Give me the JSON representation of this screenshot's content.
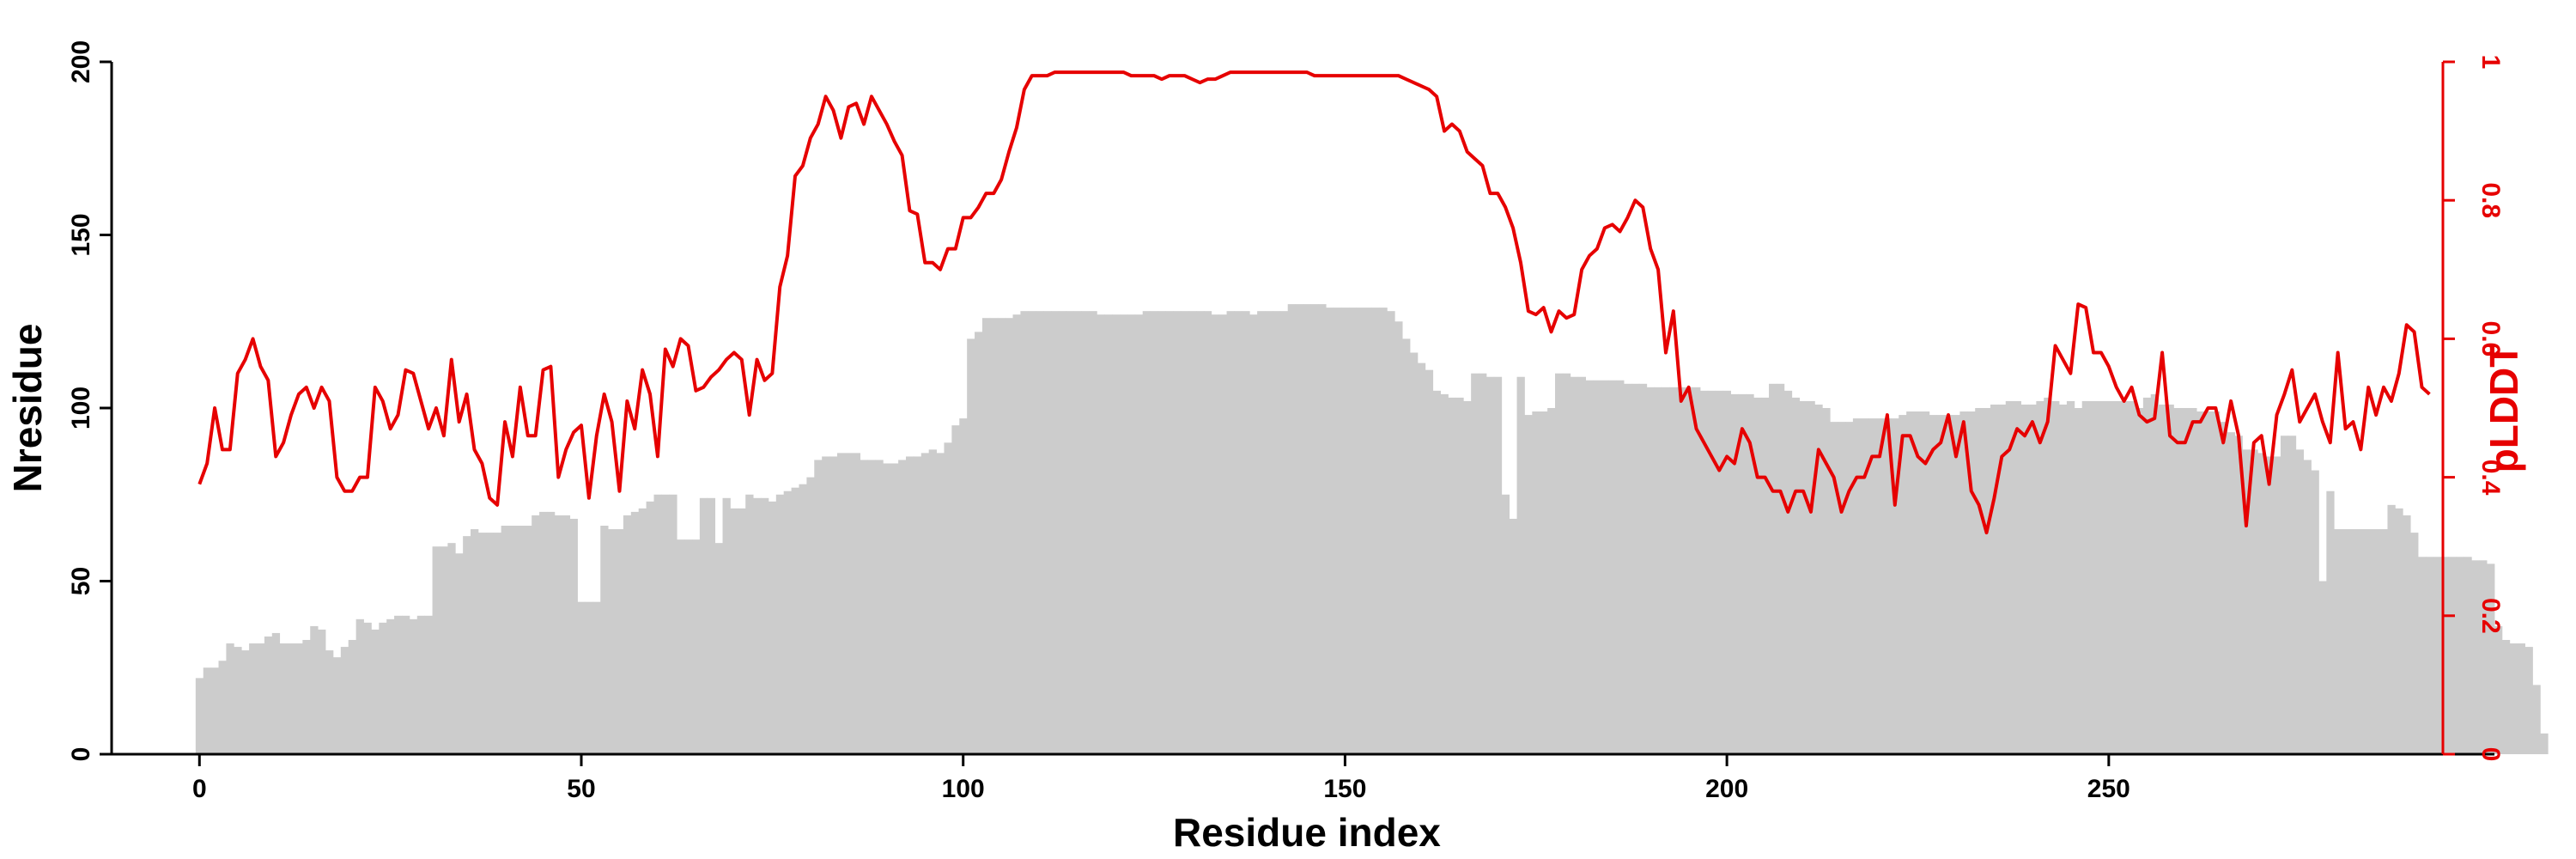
{
  "colors": {
    "bar": "#cccccc",
    "line": "#e60000",
    "axis": "#000000"
  },
  "chart_data": {
    "type": "bar+line",
    "xlabel": "Residue index",
    "ylabel_left": "Nresidue",
    "ylabel_right": "pLDDT",
    "xlim": [
      -11.5,
      300.5
    ],
    "ylim_left": [
      0,
      200
    ],
    "ylim_right": [
      0,
      1
    ],
    "x_ticks": [
      0,
      50,
      100,
      150,
      200,
      250
    ],
    "x_tick_labels": [
      "0",
      "50",
      "100",
      "150",
      "200",
      "250"
    ],
    "y_ticks_left": [
      0,
      50,
      100,
      150,
      200
    ],
    "y_tick_labels_left": [
      "0",
      "50",
      "100",
      "150",
      "200"
    ],
    "y_ticks_right": [
      0,
      0.2,
      0.4,
      0.6,
      0.8,
      1
    ],
    "y_tick_labels_right": [
      "0",
      "0.2",
      "0.4",
      "0.6",
      "0.8",
      "1"
    ],
    "grid": false,
    "legend": "none",
    "series": [
      {
        "kind": "bar",
        "axis": "left",
        "x_start": 0,
        "values": [
          22,
          25,
          25,
          27,
          32,
          31,
          30,
          32,
          32,
          34,
          35,
          32,
          32,
          32,
          33,
          37,
          36,
          30,
          28,
          31,
          33,
          39,
          38,
          36,
          38,
          39,
          40,
          40,
          39,
          40,
          40,
          60,
          60,
          61,
          58,
          63,
          65,
          64,
          64,
          64,
          66,
          66,
          66,
          66,
          69,
          70,
          70,
          69,
          69,
          68,
          44,
          44,
          44,
          66,
          65,
          65,
          69,
          70,
          71,
          73,
          75,
          75,
          75,
          62,
          62,
          62,
          74,
          74,
          61,
          74,
          71,
          71,
          75,
          74,
          74,
          73,
          75,
          76,
          77,
          78,
          80,
          85,
          86,
          86,
          87,
          87,
          87,
          85,
          85,
          85,
          84,
          84,
          85,
          86,
          86,
          87,
          88,
          87,
          90,
          95,
          97,
          120,
          122,
          126,
          126,
          126,
          126,
          127,
          128,
          128,
          128,
          128,
          128,
          128,
          128,
          128,
          128,
          128,
          127,
          127,
          127,
          127,
          127,
          127,
          128,
          128,
          128,
          128,
          128,
          128,
          128,
          128,
          128,
          127,
          127,
          128,
          128,
          128,
          127,
          128,
          128,
          128,
          128,
          130,
          130,
          130,
          130,
          130,
          129,
          129,
          129,
          129,
          129,
          129,
          129,
          129,
          128,
          125,
          120,
          116,
          113,
          111,
          105,
          104,
          103,
          103,
          102,
          110,
          110,
          109,
          109,
          75,
          68,
          109,
          98,
          99,
          99,
          100,
          110,
          110,
          109,
          109,
          108,
          108,
          108,
          108,
          108,
          107,
          107,
          107,
          106,
          106,
          106,
          106,
          106,
          106,
          106,
          105,
          105,
          105,
          105,
          104,
          104,
          104,
          103,
          103,
          107,
          107,
          105,
          103,
          102,
          102,
          101,
          100,
          96,
          96,
          96,
          97,
          97,
          97,
          97,
          97,
          97,
          98,
          99,
          99,
          99,
          98,
          98,
          98,
          98,
          99,
          99,
          100,
          100,
          101,
          101,
          102,
          102,
          101,
          101,
          102,
          103,
          102,
          101,
          102,
          100,
          102,
          102,
          102,
          102,
          102,
          102,
          102,
          100,
          103,
          104,
          101,
          101,
          100,
          100,
          100,
          99,
          99,
          99,
          96,
          93,
          92,
          88,
          88,
          87,
          86,
          86,
          92,
          92,
          88,
          85,
          82,
          50,
          76,
          65,
          65,
          65,
          65,
          65,
          65,
          65,
          72,
          71,
          69,
          64,
          57,
          57,
          57,
          57,
          57,
          57,
          57,
          56,
          56,
          55,
          37,
          33,
          32,
          32,
          31,
          20,
          6
        ]
      },
      {
        "kind": "line",
        "axis": "right",
        "x_start": 0,
        "values": [
          0.39,
          0.42,
          0.5,
          0.44,
          0.44,
          0.55,
          0.57,
          0.6,
          0.56,
          0.54,
          0.43,
          0.45,
          0.49,
          0.52,
          0.53,
          0.5,
          0.53,
          0.51,
          0.4,
          0.38,
          0.38,
          0.4,
          0.4,
          0.53,
          0.51,
          0.47,
          0.49,
          0.555,
          0.55,
          0.51,
          0.47,
          0.5,
          0.46,
          0.57,
          0.48,
          0.52,
          0.44,
          0.42,
          0.37,
          0.36,
          0.48,
          0.43,
          0.53,
          0.46,
          0.46,
          0.555,
          0.56,
          0.4,
          0.44,
          0.465,
          0.475,
          0.37,
          0.46,
          0.52,
          0.48,
          0.38,
          0.51,
          0.47,
          0.555,
          0.52,
          0.43,
          0.585,
          0.56,
          0.6,
          0.59,
          0.525,
          0.53,
          0.545,
          0.555,
          0.57,
          0.58,
          0.57,
          0.49,
          0.57,
          0.54,
          0.55,
          0.675,
          0.72,
          0.835,
          0.85,
          0.89,
          0.91,
          0.95,
          0.93,
          0.89,
          0.935,
          0.94,
          0.91,
          0.95,
          0.93,
          0.91,
          0.885,
          0.865,
          0.785,
          0.78,
          0.71,
          0.71,
          0.7,
          0.73,
          0.73,
          0.775,
          0.775,
          0.79,
          0.81,
          0.81,
          0.83,
          0.87,
          0.905,
          0.96,
          0.98,
          0.98,
          0.98,
          0.985,
          0.985,
          0.985,
          0.985,
          0.985,
          0.985,
          0.985,
          0.985,
          0.985,
          0.985,
          0.98,
          0.98,
          0.98,
          0.98,
          0.975,
          0.98,
          0.98,
          0.98,
          0.975,
          0.97,
          0.975,
          0.975,
          0.98,
          0.985,
          0.985,
          0.985,
          0.985,
          0.985,
          0.985,
          0.985,
          0.985,
          0.985,
          0.985,
          0.985,
          0.98,
          0.98,
          0.98,
          0.98,
          0.98,
          0.98,
          0.98,
          0.98,
          0.98,
          0.98,
          0.98,
          0.98,
          0.975,
          0.97,
          0.965,
          0.96,
          0.95,
          0.9,
          0.91,
          0.9,
          0.87,
          0.86,
          0.85,
          0.81,
          0.81,
          0.79,
          0.76,
          0.71,
          0.64,
          0.635,
          0.645,
          0.61,
          0.64,
          0.63,
          0.635,
          0.7,
          0.72,
          0.73,
          0.76,
          0.765,
          0.755,
          0.775,
          0.8,
          0.79,
          0.73,
          0.7,
          0.58,
          0.64,
          0.51,
          0.53,
          0.47,
          0.45,
          0.43,
          0.41,
          0.43,
          0.42,
          0.47,
          0.45,
          0.4,
          0.4,
          0.38,
          0.38,
          0.35,
          0.38,
          0.38,
          0.35,
          0.44,
          0.42,
          0.4,
          0.35,
          0.38,
          0.4,
          0.4,
          0.43,
          0.43,
          0.49,
          0.36,
          0.46,
          0.46,
          0.43,
          0.42,
          0.44,
          0.45,
          0.49,
          0.43,
          0.48,
          0.38,
          0.36,
          0.32,
          0.37,
          0.43,
          0.44,
          0.47,
          0.46,
          0.48,
          0.45,
          0.48,
          0.59,
          0.57,
          0.55,
          0.65,
          0.645,
          0.58,
          0.58,
          0.56,
          0.53,
          0.51,
          0.53,
          0.49,
          0.48,
          0.485,
          0.58,
          0.46,
          0.45,
          0.45,
          0.48,
          0.48,
          0.5,
          0.5,
          0.45,
          0.51,
          0.46,
          0.33,
          0.45,
          0.46,
          0.39,
          0.49,
          0.52,
          0.555,
          0.48,
          0.5,
          0.52,
          0.48,
          0.45,
          0.58,
          0.47,
          0.48,
          0.44,
          0.53,
          0.49,
          0.53,
          0.51,
          0.55,
          0.62,
          0.61,
          0.53,
          0.52
        ]
      }
    ]
  }
}
